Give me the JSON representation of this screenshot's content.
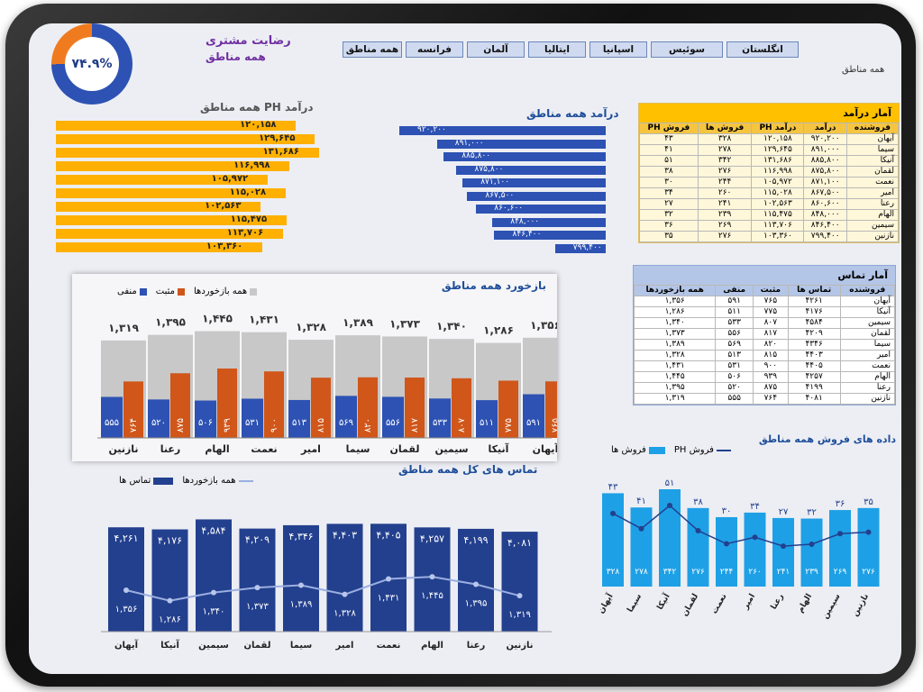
{
  "satisfaction": {
    "value_text": "۷۴.۹%",
    "fraction": 0.749,
    "title": "رضایت مشتری",
    "subtitle": "همه مناطق"
  },
  "tabs": [
    {
      "label": "همه مناطق",
      "active": true
    },
    {
      "label": "فرانسه",
      "active": false
    },
    {
      "label": "آلمان",
      "active": false
    },
    {
      "label": "ایتالیا",
      "active": false
    },
    {
      "label": "اسپانیا",
      "active": false
    },
    {
      "label": "سوئیس",
      "active": false
    },
    {
      "label": "انگلستان",
      "active": false
    }
  ],
  "region_label": "همه مناطق",
  "colors": {
    "orange": "#ffb000",
    "blue": "#2d52b3",
    "gray": "#c8c8c8",
    "accent_orange": "#d0561a",
    "light_blue": "#1ea0e6",
    "navy": "#23408e"
  },
  "revenue_ph": {
    "title": "همه مناطق PH درآمد",
    "values": [
      120158,
      129645,
      131686,
      116998,
      105972,
      115028,
      102563,
      115475,
      113706,
      103360
    ],
    "labels": [
      "۱۲۰,۱۵۸",
      "۱۲۹,۶۴۵",
      "۱۳۱,۶۸۶",
      "۱۱۶,۹۹۸",
      "۱۰۵,۹۷۲",
      "۱۱۵,۰۲۸",
      "۱۰۲,۵۶۳",
      "۱۱۵,۴۷۵",
      "۱۱۳,۷۰۶",
      "۱۰۳,۳۶۰"
    ]
  },
  "revenue_all": {
    "title": "درآمد همه مناطق",
    "values": [
      920200,
      891000,
      885800,
      875800,
      871100,
      867500,
      860600,
      848000,
      846400,
      799400
    ],
    "labels": [
      "۹۲۰,۲۰۰",
      "۸۹۱,۰۰۰",
      "۸۸۵,۸۰۰",
      "۸۷۵,۸۰۰",
      "۸۷۱,۱۰۰",
      "۸۶۷,۵۰۰",
      "۸۶۰,۶۰۰",
      "۸۴۸,۰۰۰",
      "۸۴۶,۴۰۰",
      "۷۹۹,۴۰۰"
    ]
  },
  "revenue_table": {
    "title": "آمار درآمد",
    "headers": [
      "فروشنده",
      "درآمد",
      "درآمد PH",
      "فروش ها",
      "فروش PH"
    ],
    "rows": [
      [
        "آیهان",
        "۹۲۰,۲۰۰",
        "۱۲۰,۱۵۸",
        "۳۲۸",
        "۴۳"
      ],
      [
        "سیما",
        "۸۹۱,۰۰۰",
        "۱۲۹,۶۴۵",
        "۲۷۸",
        "۴۱"
      ],
      [
        "آنیکا",
        "۸۸۵,۸۰۰",
        "۱۳۱,۶۸۶",
        "۳۴۲",
        "۵۱"
      ],
      [
        "لقمان",
        "۸۷۵,۸۰۰",
        "۱۱۶,۹۹۸",
        "۲۷۶",
        "۳۸"
      ],
      [
        "نعمت",
        "۸۷۱,۱۰۰",
        "۱۰۵,۹۷۲",
        "۲۴۴",
        "۳۰"
      ],
      [
        "امیر",
        "۸۶۷,۵۰۰",
        "۱۱۵,۰۲۸",
        "۲۶۰",
        "۳۴"
      ],
      [
        "رعنا",
        "۸۶۰,۶۰۰",
        "۱۰۲,۵۶۳",
        "۲۴۱",
        "۲۷"
      ],
      [
        "الهام",
        "۸۴۸,۰۰۰",
        "۱۱۵,۴۷۵",
        "۲۳۹",
        "۳۲"
      ],
      [
        "سیمین",
        "۸۴۶,۴۰۰",
        "۱۱۳,۷۰۶",
        "۲۶۹",
        "۳۶"
      ],
      [
        "نازنین",
        "۷۹۹,۴۰۰",
        "۱۰۳,۳۶۰",
        "۲۷۶",
        "۳۵"
      ]
    ]
  },
  "contact_table": {
    "title": "آمار تماس",
    "headers": [
      "فروشنده",
      "تماس ها",
      "مثبت",
      "منفی",
      "همه بازخوردها"
    ],
    "rows": [
      [
        "آیهان",
        "۴۲۶۱",
        "۷۶۵",
        "۵۹۱",
        "۱,۳۵۶"
      ],
      [
        "آنیکا",
        "۴۱۷۶",
        "۷۷۵",
        "۵۱۱",
        "۱,۲۸۶"
      ],
      [
        "سیمین",
        "۴۵۸۴",
        "۸۰۷",
        "۵۳۳",
        "۱,۳۴۰"
      ],
      [
        "لقمان",
        "۴۲۰۹",
        "۸۱۷",
        "۵۵۶",
        "۱,۳۷۳"
      ],
      [
        "سیما",
        "۴۳۴۶",
        "۸۲۰",
        "۵۶۹",
        "۱,۳۸۹"
      ],
      [
        "امیر",
        "۴۴۰۳",
        "۸۱۵",
        "۵۱۳",
        "۱,۳۲۸"
      ],
      [
        "نعمت",
        "۴۴۰۵",
        "۹۰۰",
        "۵۳۱",
        "۱,۴۳۱"
      ],
      [
        "الهام",
        "۴۲۵۷",
        "۹۳۹",
        "۵۰۶",
        "۱,۴۴۵"
      ],
      [
        "رعنا",
        "۴۱۹۹",
        "۸۷۵",
        "۵۲۰",
        "۱,۳۹۵"
      ],
      [
        "نازنین",
        "۴۰۸۱",
        "۷۶۴",
        "۵۵۵",
        "۱,۳۱۹"
      ]
    ]
  },
  "feedback_chart": {
    "title": "بازخورد همه مناطق",
    "legend": [
      "همه بازخوردها",
      "مثبت",
      "منفی"
    ],
    "names": [
      "آیهان",
      "آنیکا",
      "سیمین",
      "لقمان",
      "سیما",
      "امیر",
      "نعمت",
      "الهام",
      "رعنا",
      "نازنین"
    ],
    "total": [
      1356,
      1286,
      1340,
      1373,
      1389,
      1328,
      1431,
      1445,
      1395,
      1319
    ],
    "total_labels": [
      "۱,۳۵۶",
      "۱,۲۸۶",
      "۱,۳۴۰",
      "۱,۳۷۳",
      "۱,۳۸۹",
      "۱,۳۲۸",
      "۱,۴۳۱",
      "۱,۴۴۵",
      "۱,۳۹۵",
      "۱,۳۱۹"
    ],
    "positive": [
      765,
      775,
      807,
      817,
      820,
      815,
      900,
      939,
      875,
      764
    ],
    "positive_labels": [
      "۷۶۵",
      "۷۷۵",
      "۸۰۷",
      "۸۱۷",
      "۸۲۰",
      "۸۱۵",
      "۹۰۰",
      "۹۳۹",
      "۸۷۵",
      "۷۶۴"
    ],
    "negative": [
      591,
      511,
      533,
      556,
      569,
      513,
      531,
      506,
      520,
      555
    ],
    "negative_labels": [
      "۵۹۱",
      "۵۱۱",
      "۵۳۳",
      "۵۵۶",
      "۵۶۹",
      "۵۱۳",
      "۵۳۱",
      "۵۰۶",
      "۵۲۰",
      "۵۵۵"
    ]
  },
  "calls_chart": {
    "title": "تماس های کل همه مناطق",
    "legend": [
      "همه بازخوردها",
      "تماس ها"
    ],
    "names": [
      "آیهان",
      "آنیکا",
      "سیمین",
      "لقمان",
      "سیما",
      "امیر",
      "نعمت",
      "الهام",
      "رعنا",
      "نازنین"
    ],
    "calls": [
      4261,
      4176,
      4584,
      4209,
      4346,
      4403,
      4405,
      4257,
      4199,
      4081
    ],
    "calls_labels": [
      "۴,۲۶۱",
      "۴,۱۷۶",
      "۴,۵۸۴",
      "۴,۲۰۹",
      "۴,۳۴۶",
      "۴,۴۰۳",
      "۴,۴۰۵",
      "۴,۲۵۷",
      "۴,۱۹۹",
      "۴,۰۸۱"
    ],
    "feedback": [
      1356,
      1286,
      1340,
      1373,
      1389,
      1328,
      1431,
      1445,
      1395,
      1319
    ],
    "feedback_labels": [
      "۱,۳۵۶",
      "۱,۲۸۶",
      "۱,۳۴۰",
      "۱,۳۷۳",
      "۱,۳۸۹",
      "۱,۳۲۸",
      "۱,۴۳۱",
      "۱,۴۴۵",
      "۱,۳۹۵",
      "۱,۳۱۹"
    ]
  },
  "sales_chart": {
    "title": "داده های فروش همه مناطق",
    "legend": [
      "فروش PH",
      "فروش ها"
    ],
    "names": [
      "آیهان",
      "سیما",
      "آنیکا",
      "لقمان",
      "نعمت",
      "امیر",
      "رعنا",
      "الهام",
      "سیمین",
      "نازنین"
    ],
    "sales": [
      328,
      278,
      342,
      276,
      244,
      260,
      241,
      239,
      269,
      276
    ],
    "sales_labels": [
      "۳۲۸",
      "۲۷۸",
      "۳۴۲",
      "۲۷۶",
      "۲۴۴",
      "۲۶۰",
      "۲۴۱",
      "۲۳۹",
      "۲۶۹",
      "۲۷۶"
    ],
    "sales_ph": [
      43,
      41,
      51,
      38,
      30,
      34,
      27,
      32,
      36,
      35
    ],
    "sales_ph_labels": [
      "۴۳",
      "۴۱",
      "۵۱",
      "۳۸",
      "۳۰",
      "۳۴",
      "۲۷",
      "۳۲",
      "۳۶",
      "۳۵"
    ]
  }
}
